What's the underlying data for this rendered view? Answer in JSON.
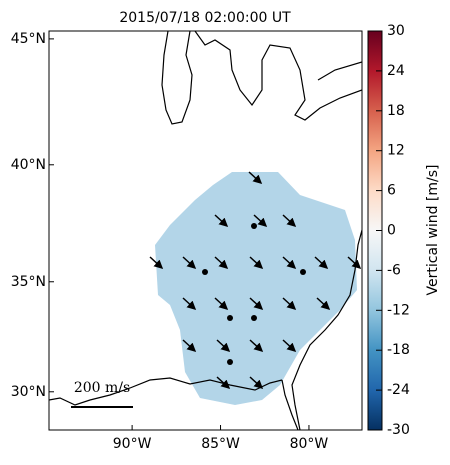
{
  "title": "2015/07/18 02:00:00 UT",
  "map": {
    "xlim": [
      -94.7,
      -77
    ],
    "ylim": [
      28.2,
      45.3
    ],
    "xticks": [
      {
        "value": -90,
        "label": "90°W"
      },
      {
        "value": -85,
        "label": "85°W"
      },
      {
        "value": -80,
        "label": "80°W"
      }
    ],
    "yticks": [
      {
        "value": 45,
        "label": "45°N"
      },
      {
        "value": 40,
        "label": "40°N"
      },
      {
        "value": 35,
        "label": "35°N"
      },
      {
        "value": 30,
        "label": "30°N"
      }
    ]
  },
  "colorbar": {
    "label": "Vertical wind [m/s]",
    "lim": [
      -30,
      30
    ],
    "ticks": [
      30,
      24,
      18,
      12,
      6,
      0,
      -6,
      -12,
      -18,
      -24,
      -30
    ]
  },
  "scale_label": "200 m/s"
}
